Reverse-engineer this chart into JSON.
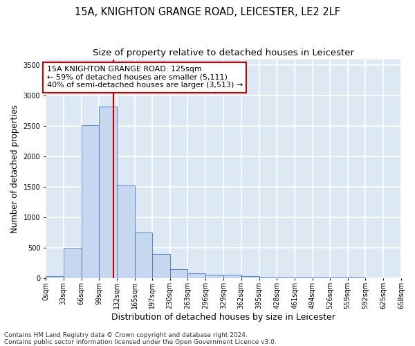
{
  "title1": "15A, KNIGHTON GRANGE ROAD, LEICESTER, LE2 2LF",
  "title2": "Size of property relative to detached houses in Leicester",
  "xlabel": "Distribution of detached houses by size in Leicester",
  "ylabel": "Number of detached properties",
  "footer1": "Contains HM Land Registry data © Crown copyright and database right 2024.",
  "footer2": "Contains public sector information licensed under the Open Government Licence v3.0.",
  "annotation_line1": "15A KNIGHTON GRANGE ROAD: 125sqm",
  "annotation_line2": "← 59% of detached houses are smaller (5,111)",
  "annotation_line3": "40% of semi-detached houses are larger (3,513) →",
  "property_size": 125,
  "bin_edges": [
    0,
    33,
    66,
    99,
    132,
    165,
    197,
    230,
    263,
    296,
    329,
    362,
    395,
    428,
    461,
    494,
    526,
    559,
    592,
    625,
    658
  ],
  "bar_values": [
    25,
    480,
    2510,
    2820,
    1520,
    750,
    390,
    140,
    75,
    50,
    50,
    25,
    10,
    10,
    10,
    5,
    5,
    5,
    0,
    0
  ],
  "bar_color": "#c5d8f0",
  "bar_edge_color": "#4472c4",
  "vline_color": "#cc0000",
  "vline_x": 125,
  "ylim": [
    0,
    3600
  ],
  "yticks": [
    0,
    500,
    1000,
    1500,
    2000,
    2500,
    3000,
    3500
  ],
  "bg_color": "#dde8f5",
  "grid_color": "#ffffff",
  "annotation_box_color": "#ffffff",
  "annotation_box_edge": "#cc0000",
  "title1_fontsize": 10.5,
  "title2_fontsize": 9.5,
  "ylabel_fontsize": 8.5,
  "xlabel_fontsize": 9,
  "tick_label_fontsize": 7,
  "annotation_fontsize": 8,
  "footer_fontsize": 6.5
}
